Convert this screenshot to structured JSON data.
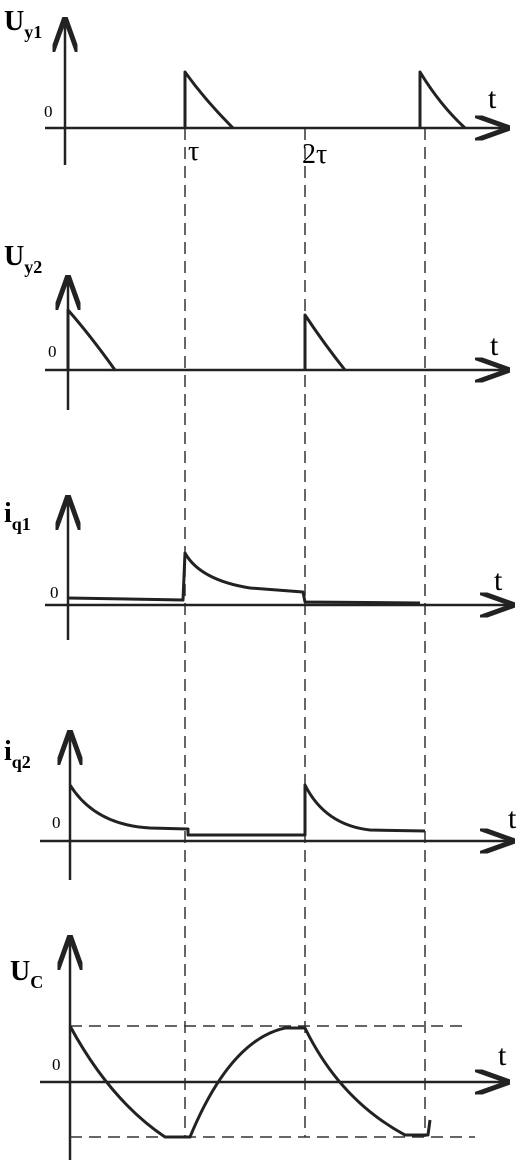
{
  "panels": [
    {
      "label": {
        "main": "U",
        "sub": "y1"
      },
      "zero": "0",
      "axis": "t"
    },
    {
      "label": {
        "main": "U",
        "sub": "y2"
      },
      "zero": "0",
      "axis": "t"
    },
    {
      "label": {
        "main": "i",
        "sub": "q1"
      },
      "zero": "0",
      "axis": "t"
    },
    {
      "label": {
        "main": "i",
        "sub": "q2"
      },
      "zero": "0",
      "axis": "t"
    },
    {
      "label": {
        "main": "U",
        "sub": "C"
      },
      "zero": "0",
      "axis": "t"
    }
  ],
  "time_marks": [
    "τ",
    "2τ"
  ]
}
